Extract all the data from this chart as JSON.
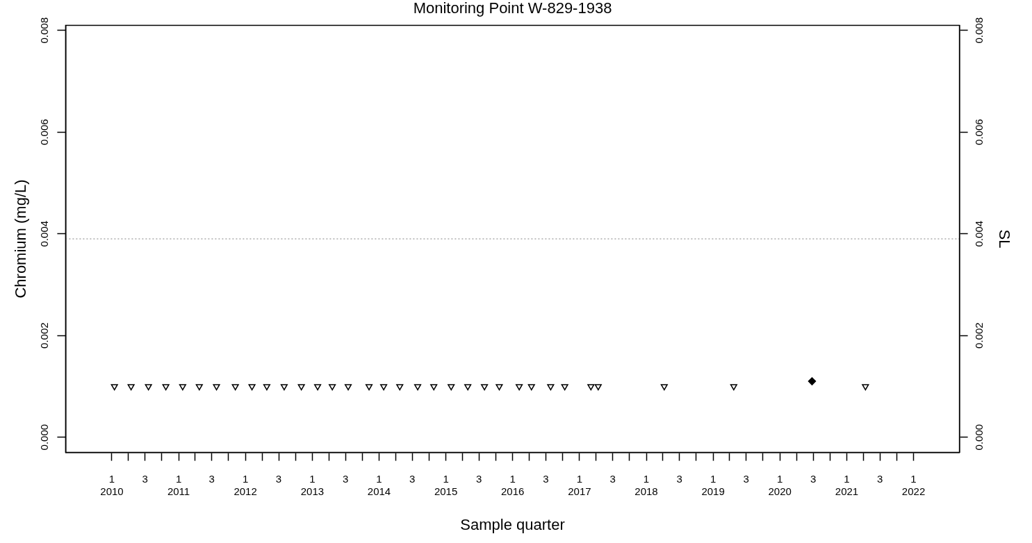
{
  "chart_data": {
    "type": "scatter",
    "title": "Monitoring Point W-829-1938",
    "xlabel": "Sample quarter",
    "ylabel": "Chromium (mg/L)",
    "y2label": "SL",
    "xlim": [
      "2009-04-23",
      "2022-09-09"
    ],
    "ylim": [
      -0.0003,
      0.0081
    ],
    "y2lim": [
      -0.0003,
      0.0081
    ],
    "xticks": [
      {
        "value": "2010-01",
        "label": "1\n2010"
      },
      {
        "value": "2010-04",
        "label": null
      },
      {
        "value": "2010-07",
        "label": "3"
      },
      {
        "value": "2010-10",
        "label": null
      },
      {
        "value": "2011-01",
        "label": "1\n2011"
      },
      {
        "value": "2011-04",
        "label": null
      },
      {
        "value": "2011-07",
        "label": "3"
      },
      {
        "value": "2011-10",
        "label": null
      },
      {
        "value": "2012-01",
        "label": "1\n2012"
      },
      {
        "value": "2012-04",
        "label": null
      },
      {
        "value": "2012-07",
        "label": "3"
      },
      {
        "value": "2012-10",
        "label": null
      },
      {
        "value": "2013-01",
        "label": "1\n2013"
      },
      {
        "value": "2013-04",
        "label": null
      },
      {
        "value": "2013-07",
        "label": "3"
      },
      {
        "value": "2013-10",
        "label": null
      },
      {
        "value": "2014-01",
        "label": "1\n2014"
      },
      {
        "value": "2014-04",
        "label": null
      },
      {
        "value": "2014-07",
        "label": "3"
      },
      {
        "value": "2014-10",
        "label": null
      },
      {
        "value": "2015-01",
        "label": "1\n2015"
      },
      {
        "value": "2015-04",
        "label": null
      },
      {
        "value": "2015-07",
        "label": "3"
      },
      {
        "value": "2015-10",
        "label": null
      },
      {
        "value": "2016-01",
        "label": "1\n2016"
      },
      {
        "value": "2016-04",
        "label": null
      },
      {
        "value": "2016-07",
        "label": "3"
      },
      {
        "value": "2016-10",
        "label": null
      },
      {
        "value": "2017-01",
        "label": "1\n2017"
      },
      {
        "value": "2017-04",
        "label": null
      },
      {
        "value": "2017-07",
        "label": "3"
      },
      {
        "value": "2017-10",
        "label": null
      },
      {
        "value": "2018-01",
        "label": "1\n2018"
      },
      {
        "value": "2018-04",
        "label": null
      },
      {
        "value": "2018-07",
        "label": "3"
      },
      {
        "value": "2018-10",
        "label": null
      },
      {
        "value": "2019-01",
        "label": "1\n2019"
      },
      {
        "value": "2019-04",
        "label": null
      },
      {
        "value": "2019-07",
        "label": "3"
      },
      {
        "value": "2019-10",
        "label": null
      },
      {
        "value": "2020-01",
        "label": "1\n2020"
      },
      {
        "value": "2020-04",
        "label": null
      },
      {
        "value": "2020-07",
        "label": "3"
      },
      {
        "value": "2020-10",
        "label": null
      },
      {
        "value": "2021-01",
        "label": "1\n2021"
      },
      {
        "value": "2021-04",
        "label": null
      },
      {
        "value": "2021-07",
        "label": "3"
      },
      {
        "value": "2021-10",
        "label": null
      },
      {
        "value": "2022-01",
        "label": "1\n2022"
      }
    ],
    "yticks": [
      {
        "value": 0,
        "label": "0.000"
      },
      {
        "value": 0.002,
        "label": "0.002"
      },
      {
        "value": 0.004,
        "label": "0.004"
      },
      {
        "value": 0.006,
        "label": "0.006"
      },
      {
        "value": 0.008,
        "label": "0.008"
      }
    ],
    "y2ticks": [
      {
        "value": 0,
        "label": "0.000"
      },
      {
        "value": 0.002,
        "label": "0.002"
      },
      {
        "value": 0.004,
        "label": "0.004"
      },
      {
        "value": 0.006,
        "label": "0.006"
      },
      {
        "value": 0.008,
        "label": "0.008"
      }
    ],
    "grid": false,
    "legend": false,
    "ref_lines": [
      {
        "axis": "y",
        "value": 0.0039,
        "color": "#808080",
        "line_style": "dotted"
      }
    ],
    "series": [
      {
        "color": "#000000",
        "marker": "triangle",
        "x": [
          "2010-01-15",
          "2010-04-16",
          "2010-07-20",
          "2010-10-23",
          "2011-01-23",
          "2011-04-24",
          "2011-07-27",
          "2011-11-07",
          "2012-02-06",
          "2012-04-27",
          "2012-07-31",
          "2012-11-02",
          "2013-01-30",
          "2013-04-20",
          "2013-07-16",
          "2013-11-07",
          "2014-01-26",
          "2014-04-24",
          "2014-07-31",
          "2014-10-27",
          "2015-01-30",
          "2015-05-01",
          "2015-07-31",
          "2015-10-20",
          "2016-02-06",
          "2016-04-13",
          "2016-07-27",
          "2016-10-12",
          "2017-03-04",
          "2017-04-13",
          "2018-04-09",
          "2019-04-24",
          "2021-04-13"
        ],
        "values": [
          0.001,
          0.001,
          0.001,
          0.001,
          0.001,
          0.001,
          0.001,
          0.001,
          0.001,
          0.001,
          0.001,
          0.001,
          0.001,
          0.001,
          0.001,
          0.001,
          0.001,
          0.001,
          0.001,
          0.001,
          0.001,
          0.001,
          0.001,
          0.001,
          0.001,
          0.001,
          0.001,
          0.001,
          0.001,
          0.001,
          0.001,
          0.001,
          0.001
        ]
      },
      {
        "color": "#000000",
        "marker": "diamond",
        "x": [
          "2020-06-25"
        ],
        "values": [
          0.0011
        ]
      }
    ]
  }
}
